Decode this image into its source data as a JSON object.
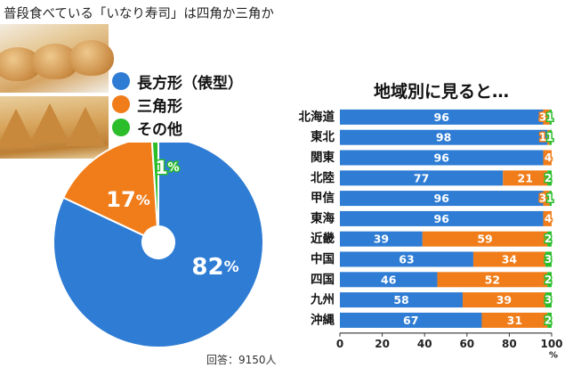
{
  "title": "普段食べている「いなり寿司」は四角か三角か",
  "colors": {
    "rectangle": "#2e7cd4",
    "triangle": "#f07d1a",
    "other": "#2bbd2a",
    "axis": "#333333"
  },
  "pie": {
    "legend": [
      "長方形（俵型）",
      "三角形",
      "その他"
    ],
    "value_labels": [
      "82",
      "17",
      "1"
    ],
    "unit": "%",
    "note": "回答：9150人"
  },
  "chart_data": [
    {
      "type": "pie",
      "categories": [
        "長方形（俵型）",
        "三角形",
        "その他"
      ],
      "values": [
        82,
        17,
        1
      ],
      "unit": "%"
    },
    {
      "type": "bar",
      "stacked": true,
      "orientation": "horizontal",
      "title": "地域別に見ると…",
      "categories": [
        "北海道",
        "東北",
        "関東",
        "北陸",
        "甲信",
        "東海",
        "近畿",
        "中国",
        "四国",
        "九州",
        "沖縄"
      ],
      "series": [
        {
          "color": "#2e7cd4",
          "values": [
            96,
            98,
            96,
            77,
            96,
            96,
            39,
            63,
            46,
            58,
            67
          ]
        },
        {
          "color": "#f07d1a",
          "values": [
            3,
            1,
            4,
            21,
            3,
            4,
            59,
            34,
            52,
            39,
            31
          ]
        },
        {
          "color": "#2bbd2a",
          "values": [
            1,
            1,
            0,
            2,
            1,
            0,
            2,
            3,
            2,
            3,
            2
          ]
        }
      ],
      "xlim": [
        0,
        100
      ],
      "xticks": [
        "0",
        "20",
        "40",
        "60",
        "80",
        "100"
      ],
      "xunit": "%"
    }
  ]
}
